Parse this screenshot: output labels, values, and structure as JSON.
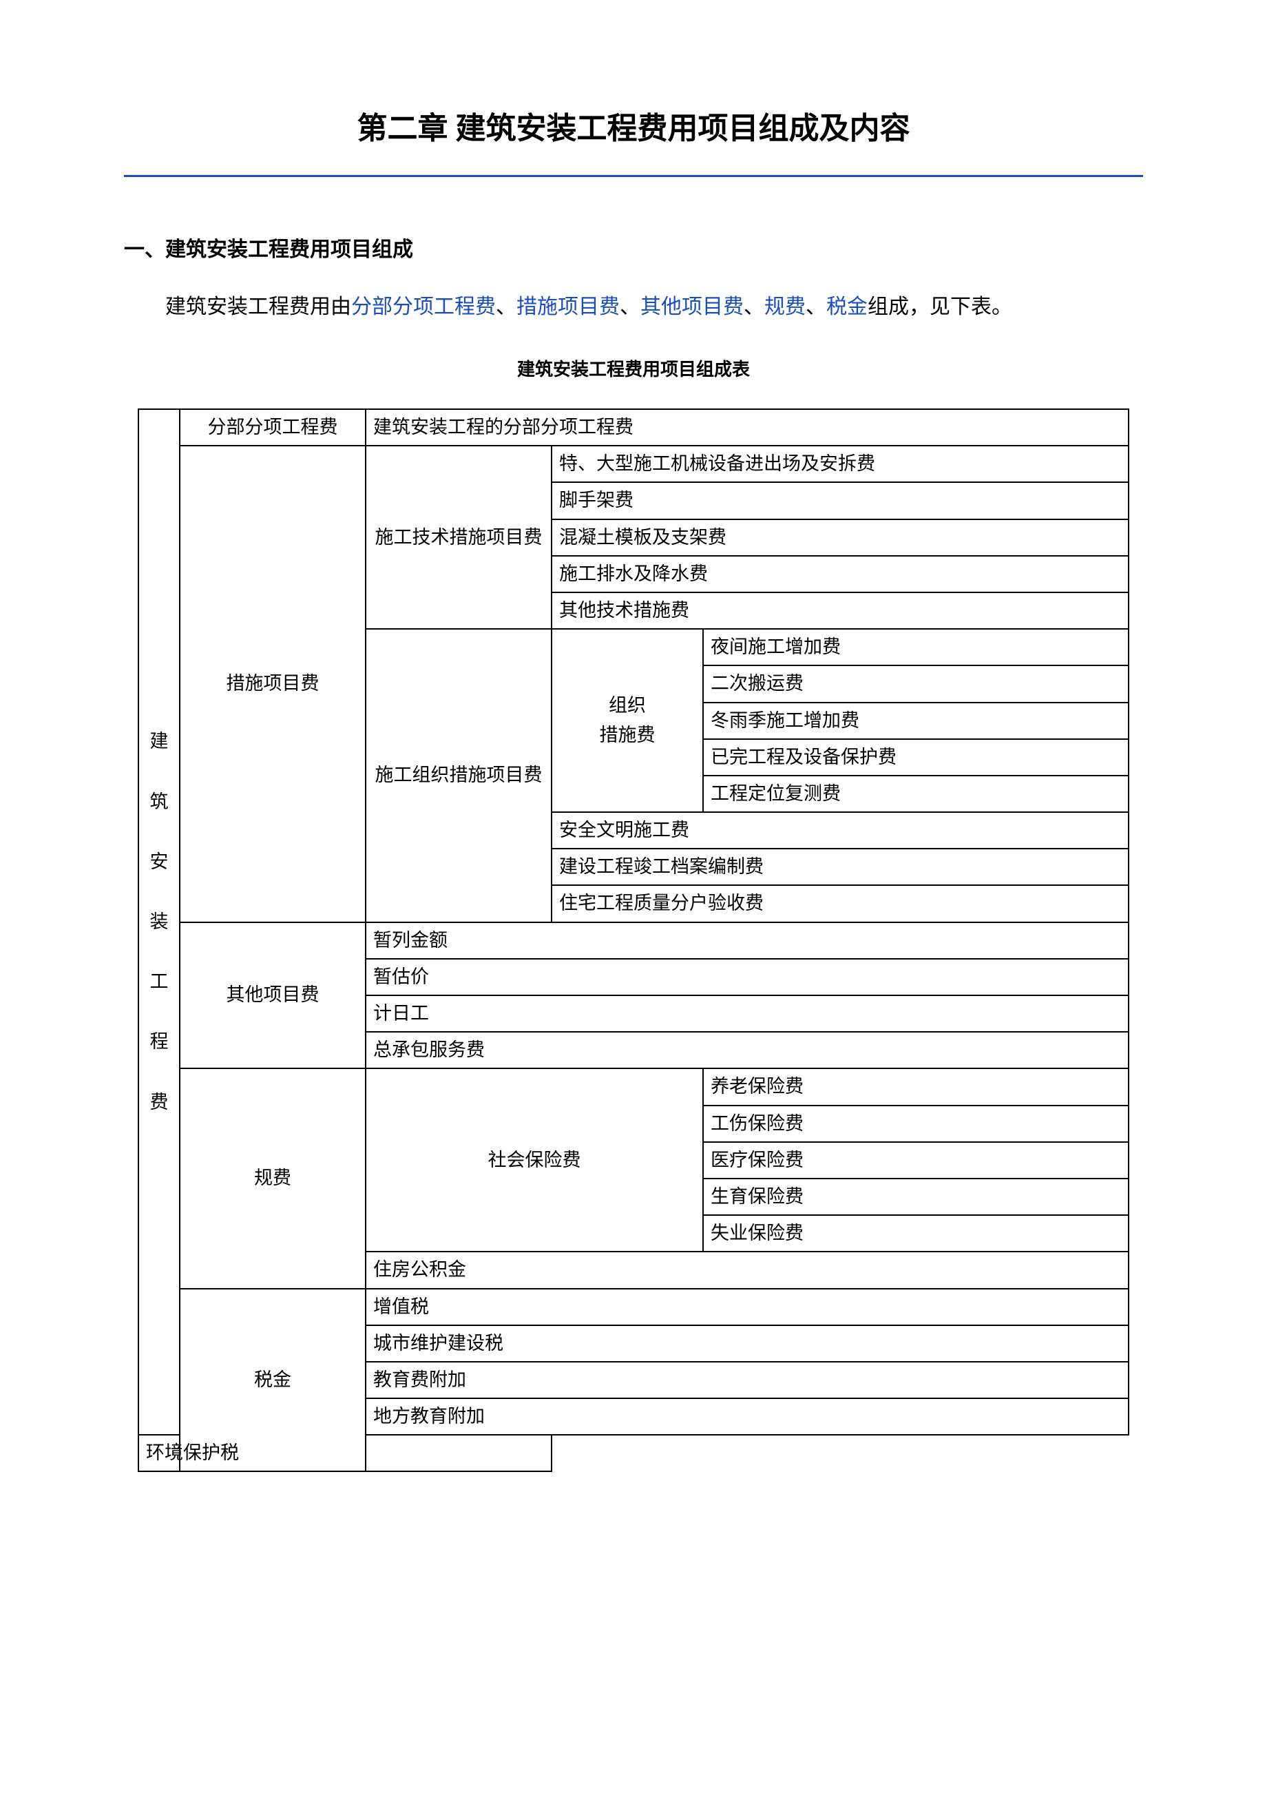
{
  "title": "第二章 建筑安装工程费用项目组成及内容",
  "section1_heading": "一、建筑安装工程费用项目组成",
  "intro_prefix": "建筑安装工程费用由",
  "intro_parts": {
    "a": "分部分项工程费",
    "sep": "、",
    "b": "措施项目费",
    "c": "其他项目费",
    "d": "规费",
    "e": "税金"
  },
  "intro_suffix": "组成，见下表。",
  "table_caption": "建筑安装工程费用项目组成表",
  "colors": {
    "accent": "#1a4dc2",
    "text": "#000000",
    "bg": "#ffffff",
    "border": "#000000"
  },
  "left_label": "建筑安装工程费",
  "left_chars": {
    "c0": "建",
    "c1": "筑",
    "c2": "安",
    "c3": "装",
    "c4": "工",
    "c5": "程",
    "c6": "费"
  },
  "rows": {
    "cat1": "分部分项工程费",
    "cat1_desc": "建筑安装工程的分部分项工程费",
    "cat2": "措施项目费",
    "sub2a": "施工技术措施项目费",
    "sub2a_r1": "特、大型施工机械设备进出场及安拆费",
    "sub2a_r2": "脚手架费",
    "sub2a_r3": "混凝土模板及支架费",
    "sub2a_r4": "施工排水及降水费",
    "sub2a_r5": "其他技术措施费",
    "sub2b": "施工组织措施项目费",
    "sub2b_mid": "组织措施费",
    "sub2b_mid_line1": "组织",
    "sub2b_mid_line2": "措施费",
    "sub2b_r1": "夜间施工增加费",
    "sub2b_r2": "二次搬运费",
    "sub2b_r3": "冬雨季施工增加费",
    "sub2b_r4": "已完工程及设备保护费",
    "sub2b_r5": "工程定位复测费",
    "sub2b_x1": "安全文明施工费",
    "sub2b_x2": "建设工程竣工档案编制费",
    "sub2b_x3": "住宅工程质量分户验收费",
    "cat3": "其他项目费",
    "cat3_r1": "暂列金额",
    "cat3_r2": "暂估价",
    "cat3_r3": "计日工",
    "cat3_r4": "总承包服务费",
    "cat4": "规费",
    "cat4_sub1": "社会保险费",
    "cat4_r1": "养老保险费",
    "cat4_r2": "工伤保险费",
    "cat4_r3": "医疗保险费",
    "cat4_r4": "生育保险费",
    "cat4_r5": "失业保险费",
    "cat4_x1": "住房公积金",
    "cat5": "税金",
    "cat5_r1": "增值税",
    "cat5_r2": "城市维护建设税",
    "cat5_r3": "教育费附加",
    "cat5_r4": "地方教育附加",
    "cat5_r5": "环境保护税"
  }
}
